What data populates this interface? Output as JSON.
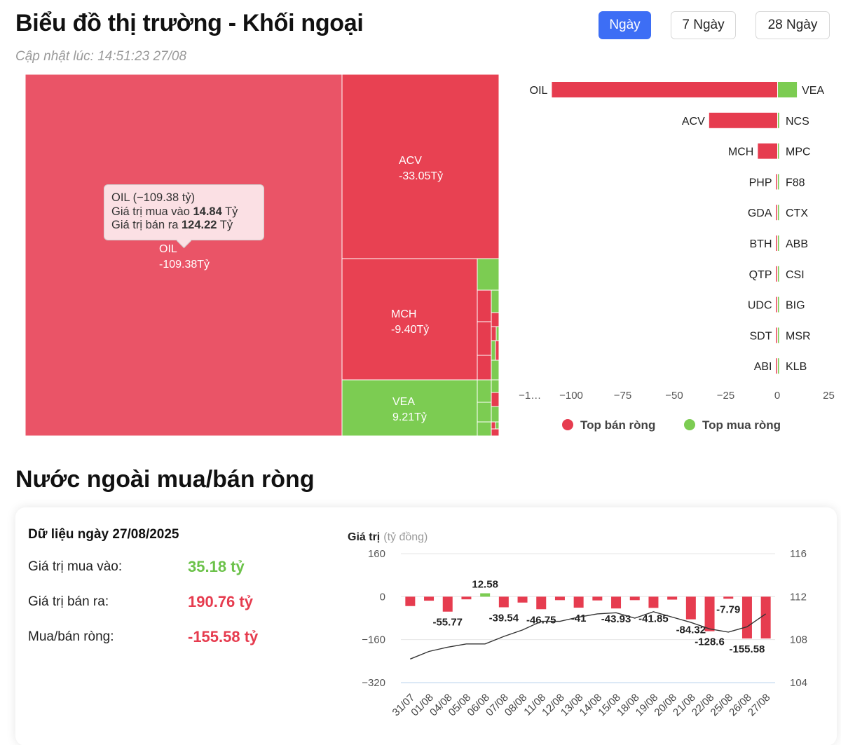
{
  "header": {
    "title": "Biểu đồ thị trường - Khối ngoại",
    "updated": "Cập nhật lúc: 14:51:23 27/08",
    "ranges": [
      "Ngày",
      "7 Ngày",
      "28 Ngày"
    ],
    "active_range": "Ngày"
  },
  "colors": {
    "sell": "#e63c4f",
    "buy": "#7ccc52",
    "accent": "#3d6ef5",
    "line": "#333333"
  },
  "tooltip": {
    "title": "OIL (−109.38 tỷ)",
    "buy_label": "Giá trị mua vào",
    "buy_value": "14.84",
    "sell_label": "Giá trị bán ra",
    "sell_value": "124.22",
    "unit": "Tỷ"
  },
  "section2": {
    "title": "Nước ngoài mua/bán ròng",
    "card_title": "Dữ liệu ngày 27/08/2025",
    "buy_label": "Giá trị mua vào:",
    "buy_value": "35.18 tỷ",
    "sell_label": "Giá trị bán ra:",
    "sell_value": "190.76 tỷ",
    "net_label": "Mua/bán ròng:",
    "net_value": "-155.58 tỷ"
  },
  "chart_data": [
    {
      "type": "heatmap",
      "title": "",
      "cells": [
        {
          "label": "OIL",
          "value_text": "-109.38Tỷ",
          "value": -109.38
        },
        {
          "label": "ACV",
          "value_text": "-33.05Tỷ",
          "value": -33.05
        },
        {
          "label": "MCH",
          "value_text": "-9.40Tỷ",
          "value": -9.4
        },
        {
          "label": "VEA",
          "value_text": "9.21Tỷ",
          "value": 9.21
        }
      ]
    },
    {
      "type": "bar",
      "orientation": "horizontal",
      "sell_labels": [
        "OIL",
        "ACV",
        "MCH",
        "PHP",
        "GDA",
        "BTH",
        "QTP",
        "UDC",
        "SDT",
        "ABI"
      ],
      "buy_labels": [
        "VEA",
        "NCS",
        "MPC",
        "F88",
        "CTX",
        "ABB",
        "CSI",
        "BIG",
        "MSR",
        "KLB"
      ],
      "series": [
        {
          "name": "Top bán ròng",
          "values": [
            -109.38,
            -33.05,
            -9.4,
            -0.5,
            -0.4,
            -0.3,
            -0.3,
            -0.3,
            -0.3,
            -0.2
          ]
        },
        {
          "name": "Top mua ròng",
          "values": [
            9.21,
            0.6,
            0.4,
            0.3,
            0.3,
            0.3,
            0.2,
            0.2,
            0.2,
            0.2
          ]
        }
      ],
      "xlim": [
        -125,
        25
      ],
      "x_ticks": [
        "−1…",
        "−100",
        "−75",
        "−50",
        "−25",
        "0",
        "25"
      ],
      "legend_position": "bottom"
    },
    {
      "type": "bar",
      "ylabel": "Giá trị",
      "ylabel_unit": "(tỷ đồng)",
      "categories": [
        "31/07",
        "01/08",
        "04/08",
        "05/08",
        "06/08",
        "07/08",
        "08/08",
        "11/08",
        "12/08",
        "13/08",
        "14/08",
        "15/08",
        "18/08",
        "19/08",
        "20/08",
        "21/08",
        "22/08",
        "25/08",
        "26/08",
        "27/08"
      ],
      "series": [
        {
          "values": [
            -35,
            -15,
            -55.77,
            -10,
            12.58,
            -39.54,
            -22,
            -46.75,
            -13,
            -41,
            -14,
            -43.93,
            -13,
            -41.85,
            -11,
            -84.32,
            -128.6,
            -7.79,
            -155.58,
            -155.58
          ]
        },
        {
          "axis": "right",
          "values": [
            106.2,
            106.9,
            107.3,
            107.6,
            107.6,
            108.3,
            108.9,
            109.7,
            109.7,
            110.1,
            110.4,
            110.5,
            110.0,
            110.6,
            110.1,
            109.6,
            109.0,
            108.7,
            109.2,
            110.4
          ]
        }
      ],
      "labeled_values": [
        "-55.77",
        "12.58",
        "-39.54",
        "-46.75",
        "-41",
        "-43.93",
        "-41.85",
        "-84.32",
        "-128.6",
        "-7.79",
        "-155.58"
      ],
      "ylim": [
        -320,
        160
      ],
      "y_ticks": [
        "160",
        "0",
        "−160",
        "−320"
      ],
      "y2lim": [
        104,
        116
      ],
      "y2_ticks": [
        "116",
        "112",
        "108",
        "104"
      ]
    }
  ]
}
